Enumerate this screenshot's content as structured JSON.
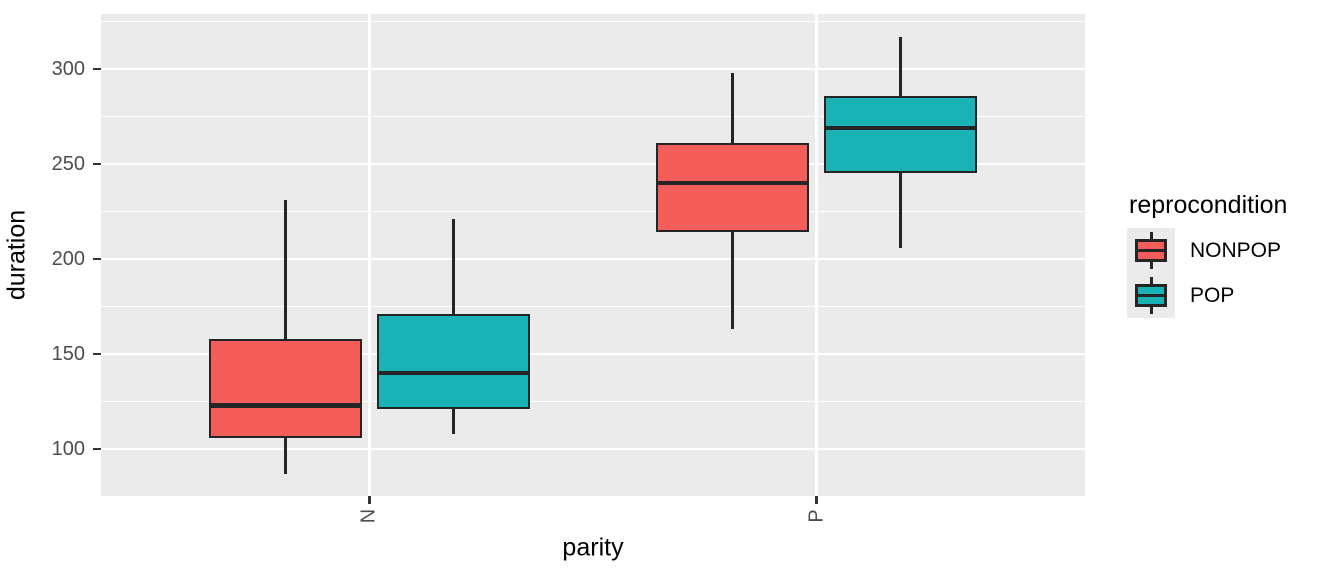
{
  "legend": {
    "title": "reprocondition",
    "items": [
      {
        "label": "NONPOP",
        "color": "#F35E5B"
      },
      {
        "label": "POP",
        "color": "#1AB3B5"
      }
    ]
  },
  "chart_data": {
    "type": "boxplot",
    "title": "",
    "xlabel": "parity",
    "ylabel": "duration",
    "categories": [
      "N",
      "P"
    ],
    "series": [
      {
        "name": "NONPOP",
        "color": "#F35E5B",
        "boxes": [
          {
            "category": "N",
            "whisker_low": 87,
            "q1": 106,
            "median": 123,
            "q3": 158,
            "whisker_high": 231
          },
          {
            "category": "P",
            "whisker_low": 163,
            "q1": 214,
            "median": 240,
            "q3": 261,
            "whisker_high": 298
          }
        ]
      },
      {
        "name": "POP",
        "color": "#1AB3B5",
        "boxes": [
          {
            "category": "N",
            "whisker_low": 108,
            "q1": 121,
            "median": 140,
            "q3": 171,
            "whisker_high": 221
          },
          {
            "category": "P",
            "whisker_low": 206,
            "q1": 245,
            "median": 269,
            "q3": 286,
            "whisker_high": 317
          }
        ]
      }
    ],
    "ylim": [
      75.3,
      328.9
    ],
    "yticks_major": [
      300,
      250,
      200,
      150,
      100
    ],
    "yticks_minor": [
      325,
      275,
      225,
      175,
      125
    ],
    "grid": {
      "major": "#FFFFFF",
      "minor": "#FFFFFF",
      "panel_bg": "#EBEBEB"
    },
    "legend_position": "right",
    "style": {
      "box_border": "#252525",
      "tick_color": "#333333",
      "tick_text": "#4D4D4D",
      "axis_title_color": "#000000"
    }
  }
}
